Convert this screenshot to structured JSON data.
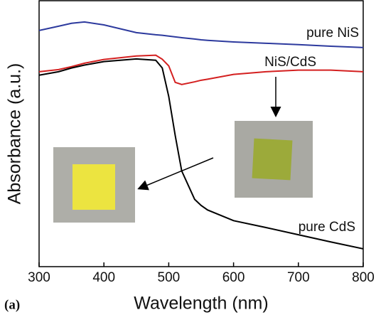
{
  "chart_data": {
    "type": "line",
    "label": "(a)",
    "xlabel": "Wavelength (nm)",
    "ylabel": "Absorbance (a.u.)",
    "x": [
      300,
      330,
      350,
      370,
      400,
      450,
      480,
      490,
      500,
      510,
      520,
      540,
      550,
      560,
      600,
      650,
      700,
      750,
      800
    ],
    "series": [
      {
        "name": "pure NiS",
        "color": "#2d3a9e",
        "values": [
          88.8,
          90.4,
          91.5,
          92,
          90.9,
          88,
          87.2,
          87,
          86.7,
          86.4,
          86.1,
          85.6,
          85.3,
          85.1,
          84.5,
          84,
          83.5,
          82.9,
          82.4
        ]
      },
      {
        "name": "NiS/CdS",
        "color": "#d42020",
        "values": [
          73.3,
          74.1,
          75.2,
          76.5,
          77.9,
          79.2,
          79.5,
          78,
          75.5,
          69.3,
          68.5,
          69.5,
          70.1,
          70.5,
          72.3,
          73.3,
          73.9,
          73.9,
          73.3
        ]
      },
      {
        "name": "pure CdS",
        "color": "#000000",
        "values": [
          72,
          73.3,
          74.7,
          75.8,
          77.1,
          78.1,
          77.6,
          74.7,
          64,
          49.3,
          36,
          25.3,
          23,
          21.3,
          17.3,
          14.7,
          12,
          9.3,
          6.7
        ]
      }
    ],
    "xlim": [
      300,
      800
    ],
    "ylim": [
      0,
      100
    ],
    "xticks": [
      300,
      400,
      500,
      600,
      700,
      800
    ]
  }
}
